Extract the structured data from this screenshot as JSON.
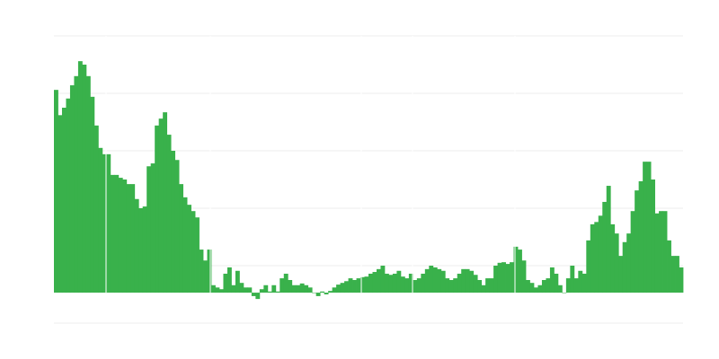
{
  "chart_data": {
    "type": "bar",
    "title": "",
    "xlabel": "",
    "ylabel": "",
    "grid": true,
    "ylim": [
      -0.53,
      4.47
    ],
    "color": "#39b14b",
    "gridline_color": "#eeeeee",
    "values": [
      3.53,
      3.09,
      3.22,
      3.38,
      3.61,
      3.77,
      4.03,
      3.97,
      3.77,
      3.41,
      2.91,
      2.52,
      2.41,
      2.41,
      2.05,
      2.05,
      2.0,
      1.97,
      1.89,
      1.89,
      1.63,
      1.47,
      1.5,
      2.2,
      2.25,
      2.91,
      3.03,
      3.14,
      2.75,
      2.47,
      2.31,
      1.89,
      1.66,
      1.53,
      1.42,
      1.31,
      0.75,
      0.56,
      0.75,
      0.13,
      0.09,
      0.06,
      0.33,
      0.44,
      0.13,
      0.38,
      0.17,
      0.09,
      0.09,
      -0.06,
      -0.11,
      0.06,
      0.13,
      0.02,
      0.13,
      0.02,
      0.25,
      0.33,
      0.22,
      0.13,
      0.13,
      0.16,
      0.13,
      0.09,
      0,
      -0.06,
      0.02,
      -0.03,
      0.03,
      0.09,
      0.14,
      0.17,
      0.2,
      0.25,
      0.22,
      0.25,
      0.27,
      0.28,
      0.33,
      0.36,
      0.41,
      0.47,
      0.33,
      0.31,
      0.33,
      0.38,
      0.28,
      0.25,
      0.33,
      0.22,
      0.25,
      0.33,
      0.41,
      0.47,
      0.44,
      0.41,
      0.38,
      0.25,
      0.22,
      0.25,
      0.33,
      0.41,
      0.41,
      0.38,
      0.31,
      0.22,
      0.13,
      0.25,
      0.25,
      0.47,
      0.52,
      0.53,
      0.5,
      0.53,
      0.8,
      0.75,
      0.56,
      0.22,
      0.17,
      0.09,
      0.13,
      0.22,
      0.25,
      0.44,
      0.33,
      0.13,
      0,
      0.25,
      0.47,
      0.25,
      0.38,
      0.33,
      0.91,
      1.19,
      1.23,
      1.34,
      1.58,
      1.86,
      1.19,
      1.03,
      0.64,
      0.88,
      1.03,
      1.42,
      1.78,
      1.94,
      2.28,
      2.28,
      1.97,
      1.38,
      1.42,
      1.42,
      0.91,
      0.64,
      0.64,
      0.44
    ]
  }
}
